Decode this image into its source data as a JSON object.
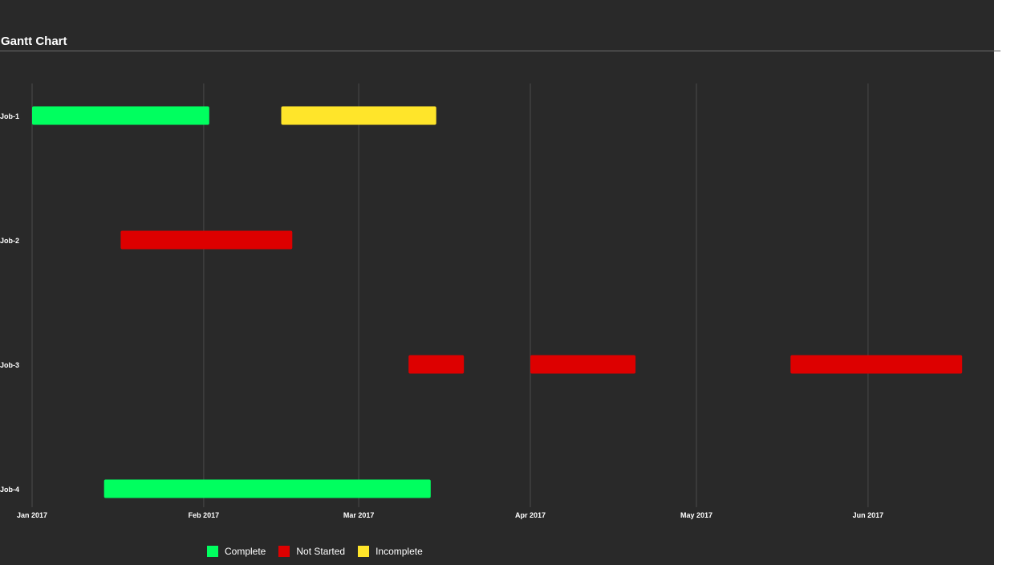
{
  "chart_data": {
    "type": "gantt",
    "title": "Gantt Chart",
    "x_axis": {
      "range": [
        "2017-01-01",
        "2017-06-21"
      ],
      "ticks": [
        {
          "date": "2017-01-01",
          "label": "Jan 2017"
        },
        {
          "date": "2017-02-01",
          "label": "Feb 2017"
        },
        {
          "date": "2017-03-01",
          "label": "Mar 2017"
        },
        {
          "date": "2017-04-01",
          "label": "Apr 2017"
        },
        {
          "date": "2017-05-01",
          "label": "May 2017"
        },
        {
          "date": "2017-06-01",
          "label": "Jun 2017"
        }
      ],
      "grid": true
    },
    "categories": [
      "Job-1",
      "Job-2",
      "Job-3",
      "Job-4"
    ],
    "tasks": [
      {
        "job": "Job-1",
        "start": "2017-01-01",
        "end": "2017-02-02",
        "status": "Complete"
      },
      {
        "job": "Job-1",
        "start": "2017-02-15",
        "end": "2017-03-15",
        "status": "Incomplete"
      },
      {
        "job": "Job-2",
        "start": "2017-01-17",
        "end": "2017-02-17",
        "status": "Not Started"
      },
      {
        "job": "Job-3",
        "start": "2017-03-10",
        "end": "2017-03-20",
        "status": "Not Started"
      },
      {
        "job": "Job-3",
        "start": "2017-04-01",
        "end": "2017-04-20",
        "status": "Not Started"
      },
      {
        "job": "Job-3",
        "start": "2017-05-18",
        "end": "2017-06-18",
        "status": "Not Started"
      },
      {
        "job": "Job-4",
        "start": "2017-01-14",
        "end": "2017-03-14",
        "status": "Complete"
      }
    ],
    "legend": [
      {
        "label": "Complete",
        "color": "#00ff5f"
      },
      {
        "label": "Not Started",
        "color": "#dd0000"
      },
      {
        "label": "Incomplete",
        "color": "#ffe52a"
      }
    ],
    "legend_position": "bottom"
  },
  "colors": {
    "background": "#292929",
    "grid": "#4a4a4a",
    "text": "#ffffff"
  }
}
